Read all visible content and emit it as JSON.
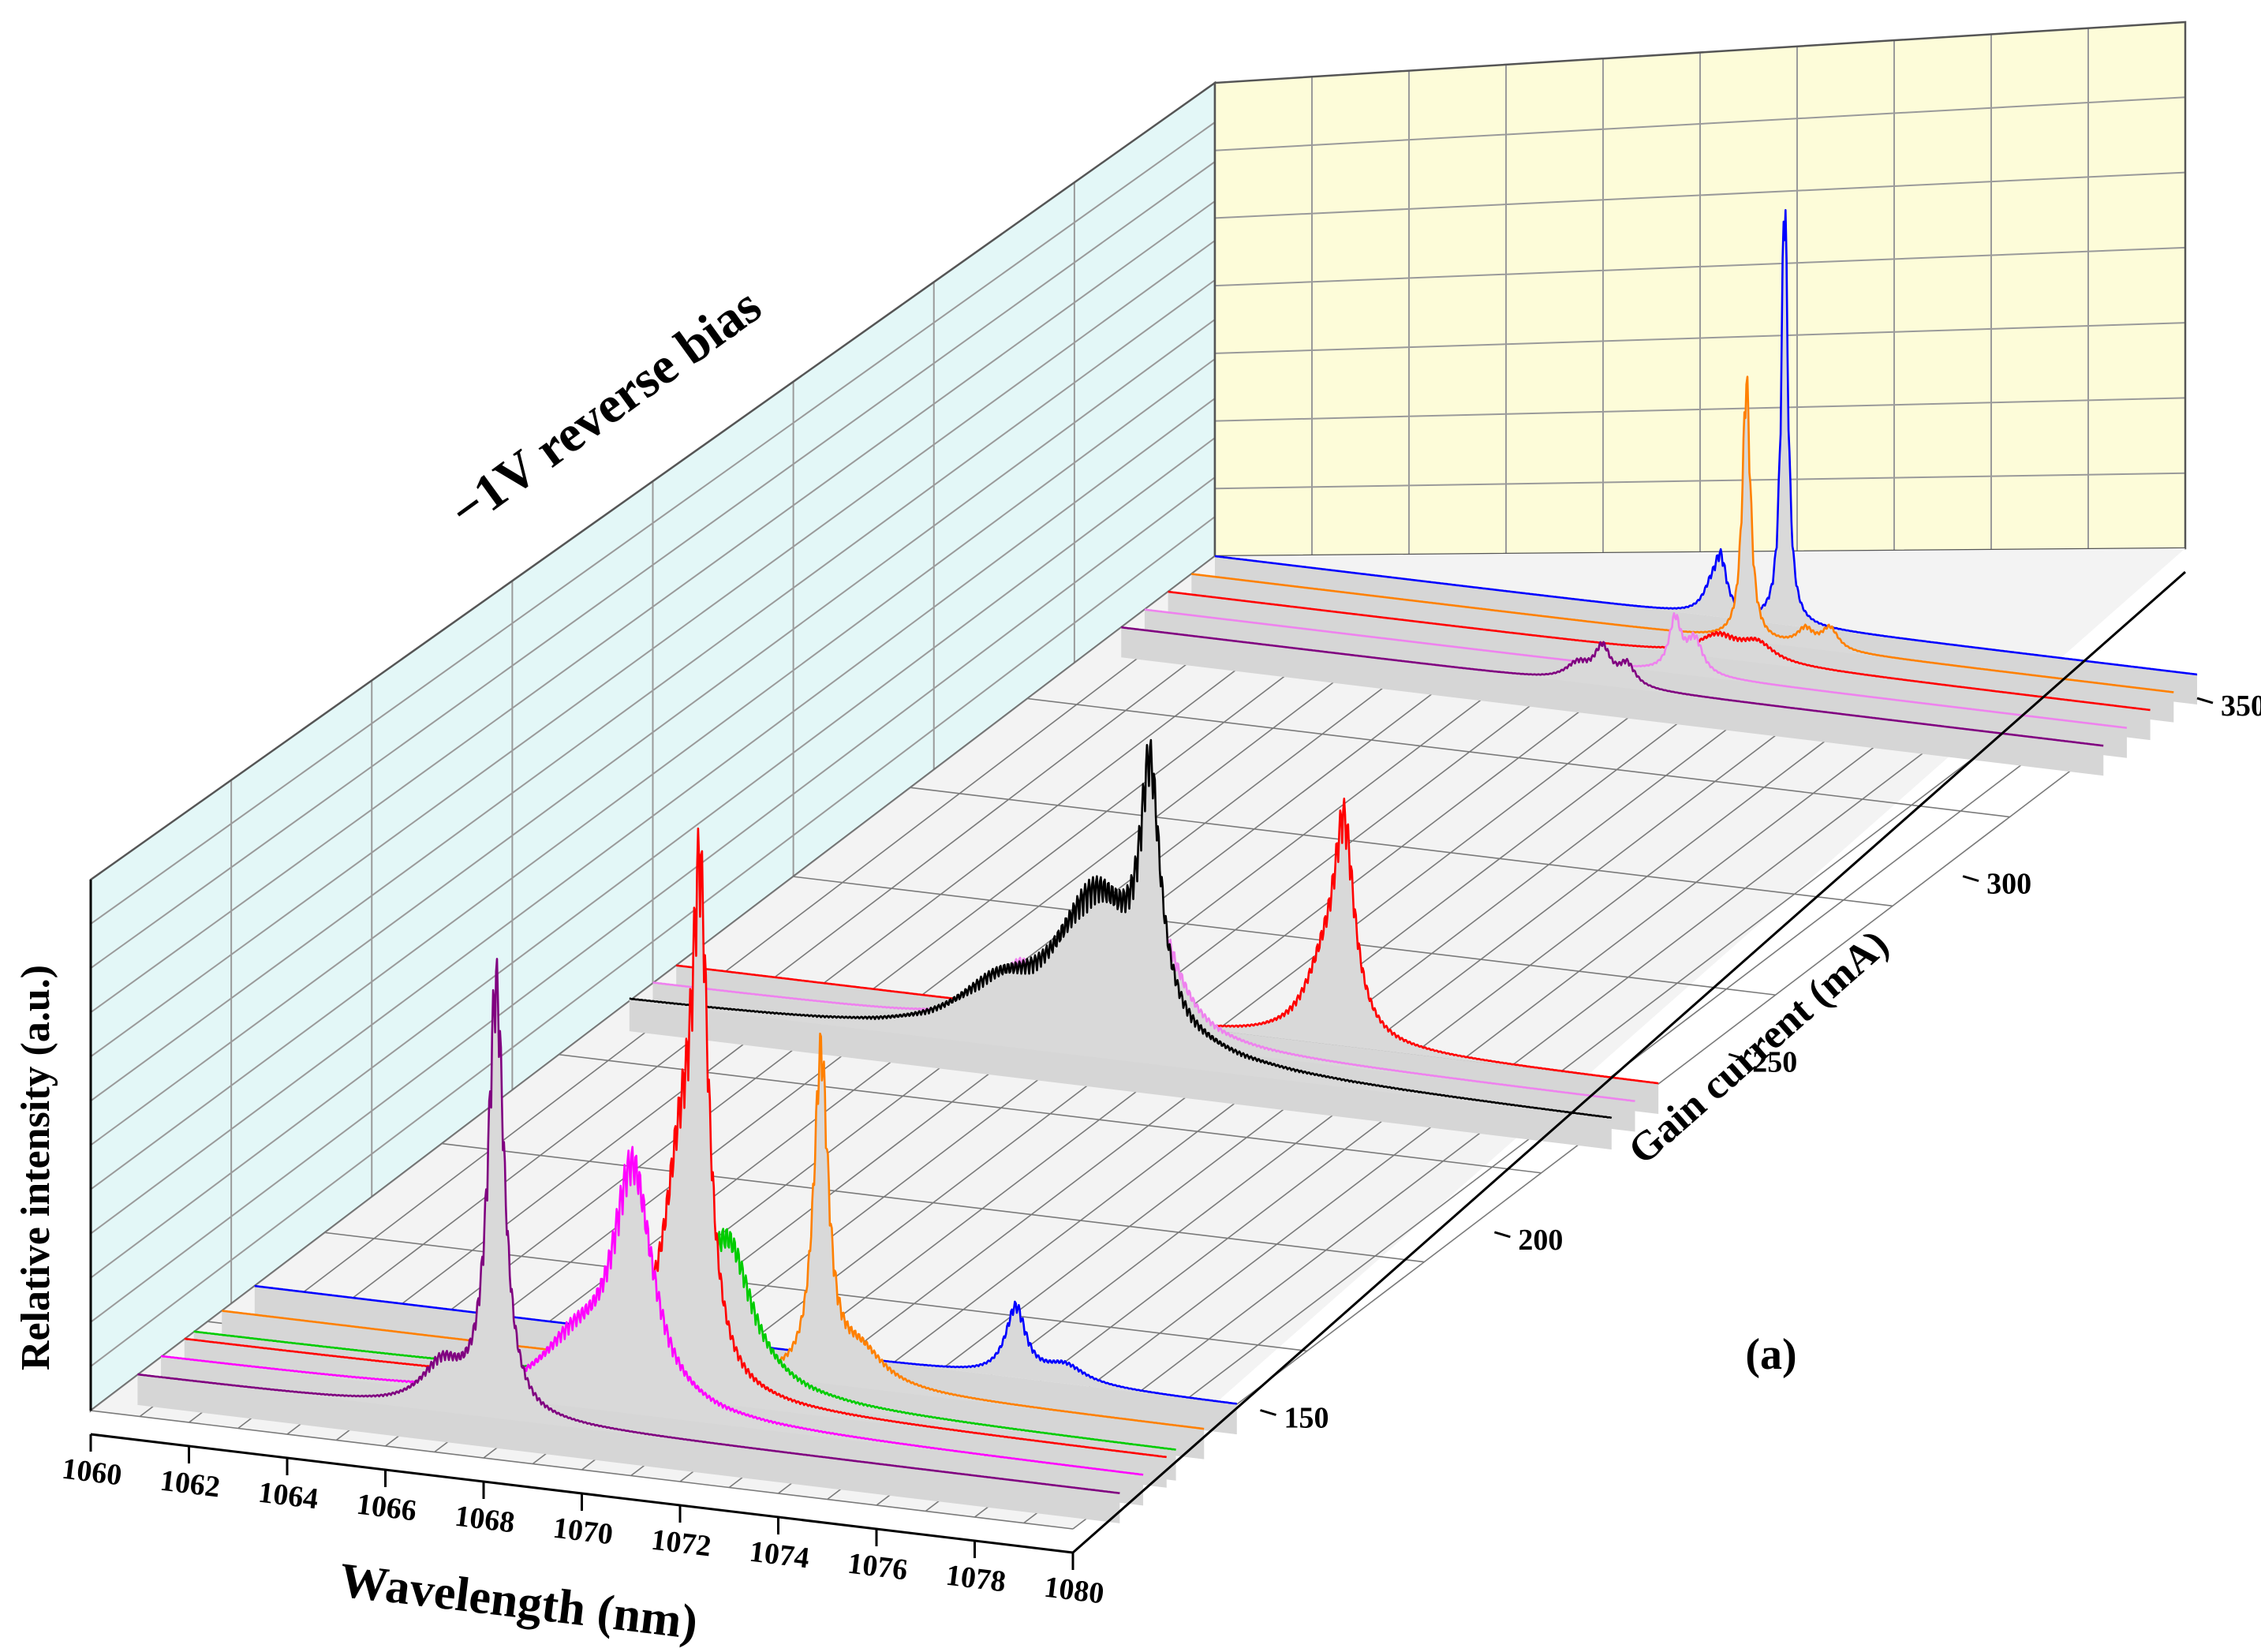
{
  "chart_data": {
    "type": "waterfall-3d-line",
    "annotation": "−1V reverse bias",
    "panel_label": "(a)",
    "x_axis": {
      "label": "Wavelength (nm)",
      "range": [
        1060,
        1080
      ],
      "ticks": [
        "1060",
        "1062",
        "1064",
        "1066",
        "1068",
        "1070",
        "1072",
        "1074",
        "1076",
        "1078",
        "1080"
      ]
    },
    "y_axis": {
      "label": "Gain current (mA)",
      "range": [
        110,
        350
      ],
      "ticks": [
        "150",
        "200",
        "250",
        "300",
        "350"
      ]
    },
    "z_axis": {
      "label": "Relative intensity (a.u.)"
    },
    "series": [
      {
        "current": 120,
        "color": "#800080",
        "peaks": [
          [
            1067.3,
            1.0,
            0.2
          ],
          [
            1066.2,
            0.1,
            0.5
          ]
        ]
      },
      {
        "current": 125,
        "color": "#ff00ff",
        "peaks": [
          [
            1069.6,
            0.55,
            0.5
          ],
          [
            1068.4,
            0.12,
            0.8
          ]
        ]
      },
      {
        "current": 130,
        "color": "#ff0000",
        "peaks": [
          [
            1070.5,
            1.02,
            0.2
          ],
          [
            1070.1,
            0.45,
            0.4
          ],
          [
            1069.4,
            0.08,
            0.7
          ]
        ]
      },
      {
        "current": 132,
        "color": "#00cc00",
        "peaks": [
          [
            1070.9,
            0.3,
            0.6
          ],
          [
            1070.0,
            0.18,
            0.7
          ]
        ]
      },
      {
        "current": 138,
        "color": "#ff8000",
        "peaks": [
          [
            1072.2,
            0.75,
            0.18
          ],
          [
            1073.0,
            0.08,
            0.6
          ]
        ]
      },
      {
        "current": 145,
        "color": "#0000ff",
        "peaks": [
          [
            1075.5,
            0.16,
            0.25
          ],
          [
            1076.5,
            0.04,
            0.5
          ]
        ]
      },
      {
        "current": 225,
        "color": "#000000",
        "peaks": [
          [
            1070.6,
            0.55,
            0.25
          ],
          [
            1069.5,
            0.35,
            1.0
          ],
          [
            1067.5,
            0.1,
            1.0
          ]
        ]
      },
      {
        "current": 230,
        "color": "#ee82ee",
        "peaks": [
          [
            1070.2,
            0.3,
            0.6
          ],
          [
            1067.5,
            0.14,
            0.6
          ]
        ]
      },
      {
        "current": 235,
        "color": "#ff0000",
        "peaks": [
          [
            1073.6,
            0.45,
            0.25
          ],
          [
            1073.2,
            0.15,
            0.5
          ]
        ]
      },
      {
        "current": 330,
        "color": "#800080",
        "peaks": [
          [
            1069.8,
            0.08,
            0.2
          ],
          [
            1070.3,
            0.05,
            0.2
          ],
          [
            1069.3,
            0.04,
            0.3
          ]
        ]
      },
      {
        "current": 335,
        "color": "#ee82ee",
        "peaks": [
          [
            1070.8,
            0.12,
            0.15
          ],
          [
            1071.2,
            0.08,
            0.2
          ]
        ]
      },
      {
        "current": 340,
        "color": "#ff0000",
        "peaks": [
          [
            1071.2,
            0.05,
            0.5
          ],
          [
            1072.0,
            0.04,
            0.4
          ]
        ]
      },
      {
        "current": 345,
        "color": "#ff8000",
        "peaks": [
          [
            1071.3,
            0.6,
            0.1
          ],
          [
            1072.5,
            0.04,
            0.2
          ],
          [
            1073.0,
            0.05,
            0.2
          ]
        ]
      },
      {
        "current": 350,
        "color": "#0000ff",
        "peaks": [
          [
            1071.6,
            1.0,
            0.08
          ],
          [
            1070.3,
            0.12,
            0.15
          ],
          [
            1070.1,
            0.05,
            0.2
          ]
        ]
      }
    ]
  }
}
